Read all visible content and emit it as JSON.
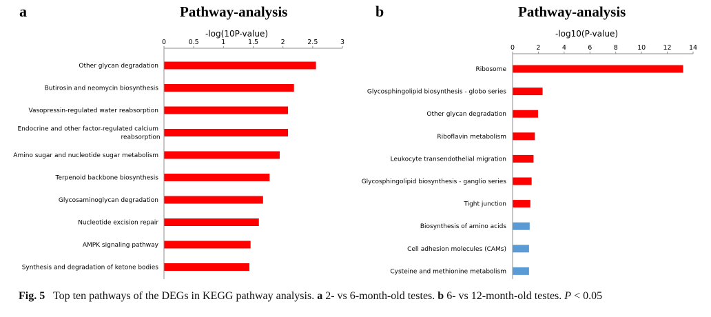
{
  "panels": [
    {
      "letter": "a",
      "title": "Pathway-analysis",
      "xlabel": "-log(10P-value)"
    },
    {
      "letter": "b",
      "title": "Pathway-analysis",
      "xlabel": "-log10(P-value)"
    }
  ],
  "caption": {
    "fig": "Fig. 5",
    "text1": "Top ten pathways of the DEGs in KEGG pathway analysis.",
    "a": "a",
    "text2": "2- vs 6-month-old testes.",
    "b": "b",
    "text3": "6- vs 12-month-old testes.",
    "p": "P",
    "text4": "< 0.05"
  },
  "colors": {
    "red": "#ff0000",
    "blue": "#5b9bd5"
  },
  "chart_data": [
    {
      "type": "bar",
      "orientation": "horizontal",
      "title": "Pathway-analysis",
      "xlabel": "-log(10P-value)",
      "xlim": [
        0,
        3
      ],
      "ticks": [
        "0",
        "0.5",
        "1",
        "1.5",
        "2",
        "2.5",
        "3"
      ],
      "categories": [
        "Other glycan degradation",
        "Butirosin and neomycin biosynthesis",
        "Vasopressin-regulated water reabsorption",
        "Endocrine and other factor-regulated calcium reabsorption",
        "Amino sugar and nucleotide sugar metabolism",
        "Terpenoid backbone biosynthesis",
        "Glycosaminoglycan degradation",
        "Nucleotide excision repair",
        "AMPK signaling pathway",
        "Synthesis and degradation of ketone bodies"
      ],
      "values": [
        2.55,
        2.18,
        2.08,
        2.08,
        1.94,
        1.77,
        1.66,
        1.59,
        1.45,
        1.43
      ],
      "colors": [
        "#ff0000",
        "#ff0000",
        "#ff0000",
        "#ff0000",
        "#ff0000",
        "#ff0000",
        "#ff0000",
        "#ff0000",
        "#ff0000",
        "#ff0000"
      ],
      "grid": false
    },
    {
      "type": "bar",
      "orientation": "horizontal",
      "title": "Pathway-analysis",
      "xlabel": "-log10(P-value)",
      "xlim": [
        0,
        14
      ],
      "ticks": [
        "0",
        "2",
        "4",
        "6",
        "8",
        "10",
        "12",
        "14"
      ],
      "categories": [
        "Ribosome",
        "Glycosphingolipid biosynthesis - globo series",
        "Other glycan degradation",
        "Riboflavin metabolism",
        "Leukocyte transendothelial migration",
        "Glycosphingolipid biosynthesis - ganglio series",
        "Tight junction",
        "Biosynthesis of amino acids",
        "Cell adhesion molecules (CAMs)",
        "Cysteine and methionine metabolism"
      ],
      "values": [
        13.2,
        2.3,
        1.95,
        1.7,
        1.6,
        1.45,
        1.35,
        1.3,
        1.25,
        1.25
      ],
      "colors": [
        "#ff0000",
        "#ff0000",
        "#ff0000",
        "#ff0000",
        "#ff0000",
        "#ff0000",
        "#ff0000",
        "#5b9bd5",
        "#5b9bd5",
        "#5b9bd5"
      ],
      "grid": false
    }
  ]
}
